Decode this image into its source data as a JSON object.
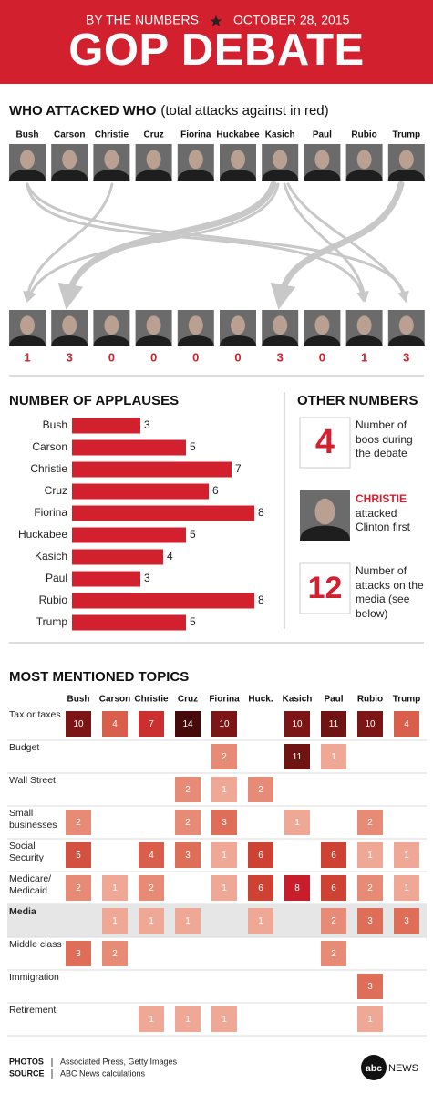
{
  "header": {
    "kicker": "BY THE NUMBERS",
    "date": "OCTOBER 28, 2015",
    "title": "GOP DEBATE"
  },
  "attacks": {
    "title": "WHO ATTACKED WHO",
    "subtitle": "(total attacks against in red)",
    "candidates": [
      "Bush",
      "Carson",
      "Christie",
      "Cruz",
      "Fiorina",
      "Huckabee",
      "Kasich",
      "Paul",
      "Rubio",
      "Trump"
    ],
    "attacks_against": [
      1,
      3,
      0,
      0,
      0,
      0,
      3,
      0,
      1,
      3
    ]
  },
  "chart_data": {
    "type": "bar",
    "orientation": "horizontal",
    "title": "NUMBER OF APPLAUSES",
    "categories": [
      "Bush",
      "Carson",
      "Christie",
      "Cruz",
      "Fiorina",
      "Huckabee",
      "Kasich",
      "Paul",
      "Rubio",
      "Trump"
    ],
    "values": [
      3,
      5,
      7,
      6,
      8,
      5,
      4,
      3,
      8,
      5
    ],
    "color": "#d3202f"
  },
  "other_numbers": {
    "title": "OTHER NUMBERS",
    "items": [
      {
        "number": 4,
        "text": "Number of boos during the debate"
      },
      {
        "name": "CHRISTIE",
        "text": "attacked Clinton first"
      },
      {
        "number": 12,
        "text": "Number of attacks on the media (see below)"
      }
    ]
  },
  "topics": {
    "title": "MOST MENTIONED TOPICS",
    "columns": [
      "Bush",
      "Carson",
      "Christie",
      "Cruz",
      "Fiorina",
      "Huck.",
      "Kasich",
      "Paul",
      "Rubio",
      "Trump"
    ],
    "rows": [
      {
        "label": "Tax or taxes",
        "values": [
          10,
          4,
          7,
          14,
          10,
          null,
          10,
          11,
          10,
          4
        ]
      },
      {
        "label": "Budget",
        "values": [
          null,
          null,
          null,
          null,
          2,
          null,
          11,
          1,
          null,
          null
        ]
      },
      {
        "label": "Wall Street",
        "values": [
          null,
          null,
          null,
          2,
          1,
          2,
          null,
          null,
          null,
          null
        ]
      },
      {
        "label": "Small businesses",
        "values": [
          2,
          null,
          null,
          2,
          3,
          null,
          1,
          null,
          2,
          null
        ]
      },
      {
        "label": "Social Security",
        "values": [
          5,
          null,
          4,
          3,
          1,
          6,
          null,
          6,
          1,
          1
        ]
      },
      {
        "label": "Medicare/ Medicaid",
        "values": [
          2,
          1,
          2,
          null,
          1,
          6,
          8,
          6,
          2,
          1
        ]
      },
      {
        "label": "Media",
        "values": [
          null,
          1,
          1,
          1,
          null,
          1,
          null,
          2,
          3,
          3
        ],
        "highlighted": true
      },
      {
        "label": "Middle class",
        "values": [
          3,
          2,
          null,
          null,
          null,
          null,
          null,
          2,
          null,
          null
        ]
      },
      {
        "label": "Immigration",
        "values": [
          null,
          null,
          null,
          null,
          null,
          null,
          null,
          null,
          3,
          null
        ]
      },
      {
        "label": "Retirement",
        "values": [
          null,
          null,
          1,
          1,
          1,
          null,
          null,
          null,
          1,
          null
        ]
      }
    ]
  },
  "footer": {
    "photos_label": "PHOTOS",
    "photos": "Associated Press, Getty Images",
    "source_label": "SOURCE",
    "source": "ABC News calculations",
    "logo": "abc",
    "logo_news": "NEWS"
  }
}
